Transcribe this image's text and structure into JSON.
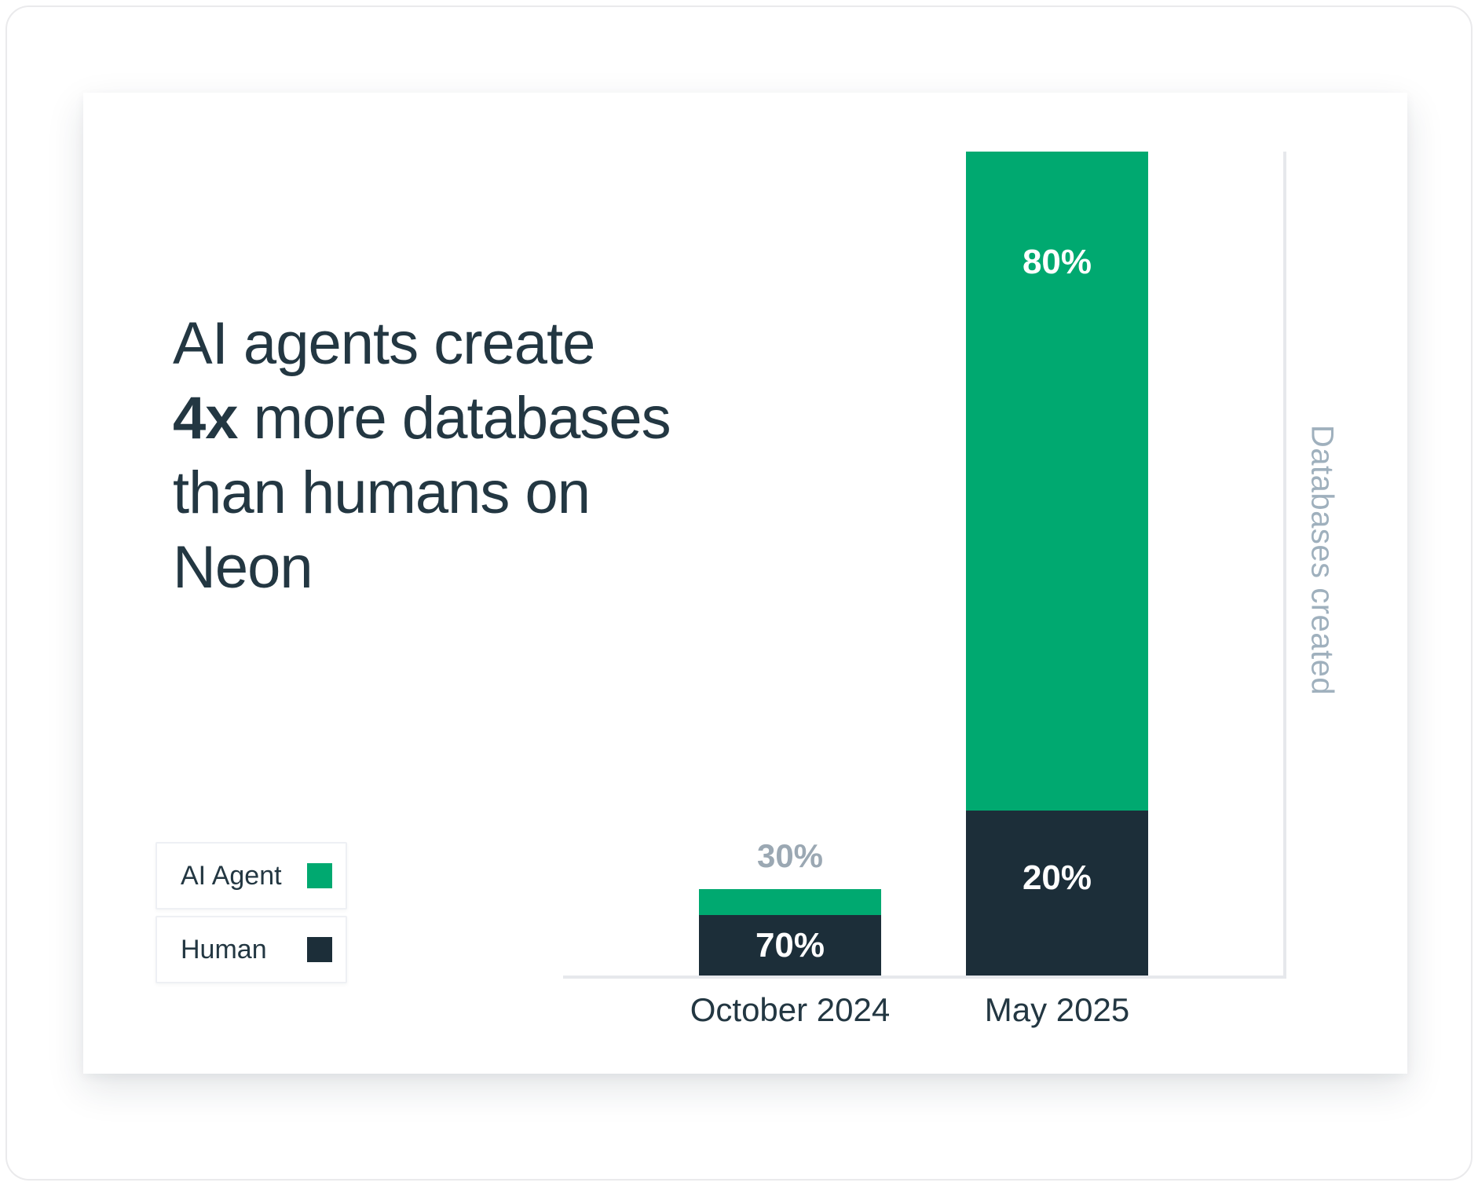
{
  "headline": {
    "line1": "AI agents create",
    "bold": "4x",
    "line2_rest": " more databases",
    "line3": "than humans on",
    "line4": "Neon"
  },
  "legend": [
    {
      "label": "AI Agent",
      "color": "#00A970"
    },
    {
      "label": "Human",
      "color": "#1C2E39"
    }
  ],
  "colors": {
    "ai_agent_green": "#00A970",
    "human_dark": "#1C2E39",
    "title_text": "#233742",
    "muted_label": "#9BA8B3",
    "axis_title": "#9FB0BD",
    "axis_line": "#E6E8EC"
  },
  "chart_data": {
    "type": "bar",
    "stacked": true,
    "title": "AI agents create 4x more databases than humans on Neon",
    "categories": [
      "October 2024",
      "May 2025"
    ],
    "series": [
      {
        "name": "AI Agent",
        "values_pct": [
          30,
          80
        ],
        "color": "#00A970"
      },
      {
        "name": "Human",
        "values_pct": [
          70,
          20
        ],
        "color": "#1C2E39"
      }
    ],
    "bar_totals_relative": [
      0.105,
      1.0
    ],
    "data_labels": {
      "oct_ai": "30%",
      "oct_human": "70%",
      "may_ai": "80%",
      "may_human": "20%"
    },
    "ylabel_right": "Databases created",
    "legend_position": "left-bottom",
    "grid": false
  }
}
